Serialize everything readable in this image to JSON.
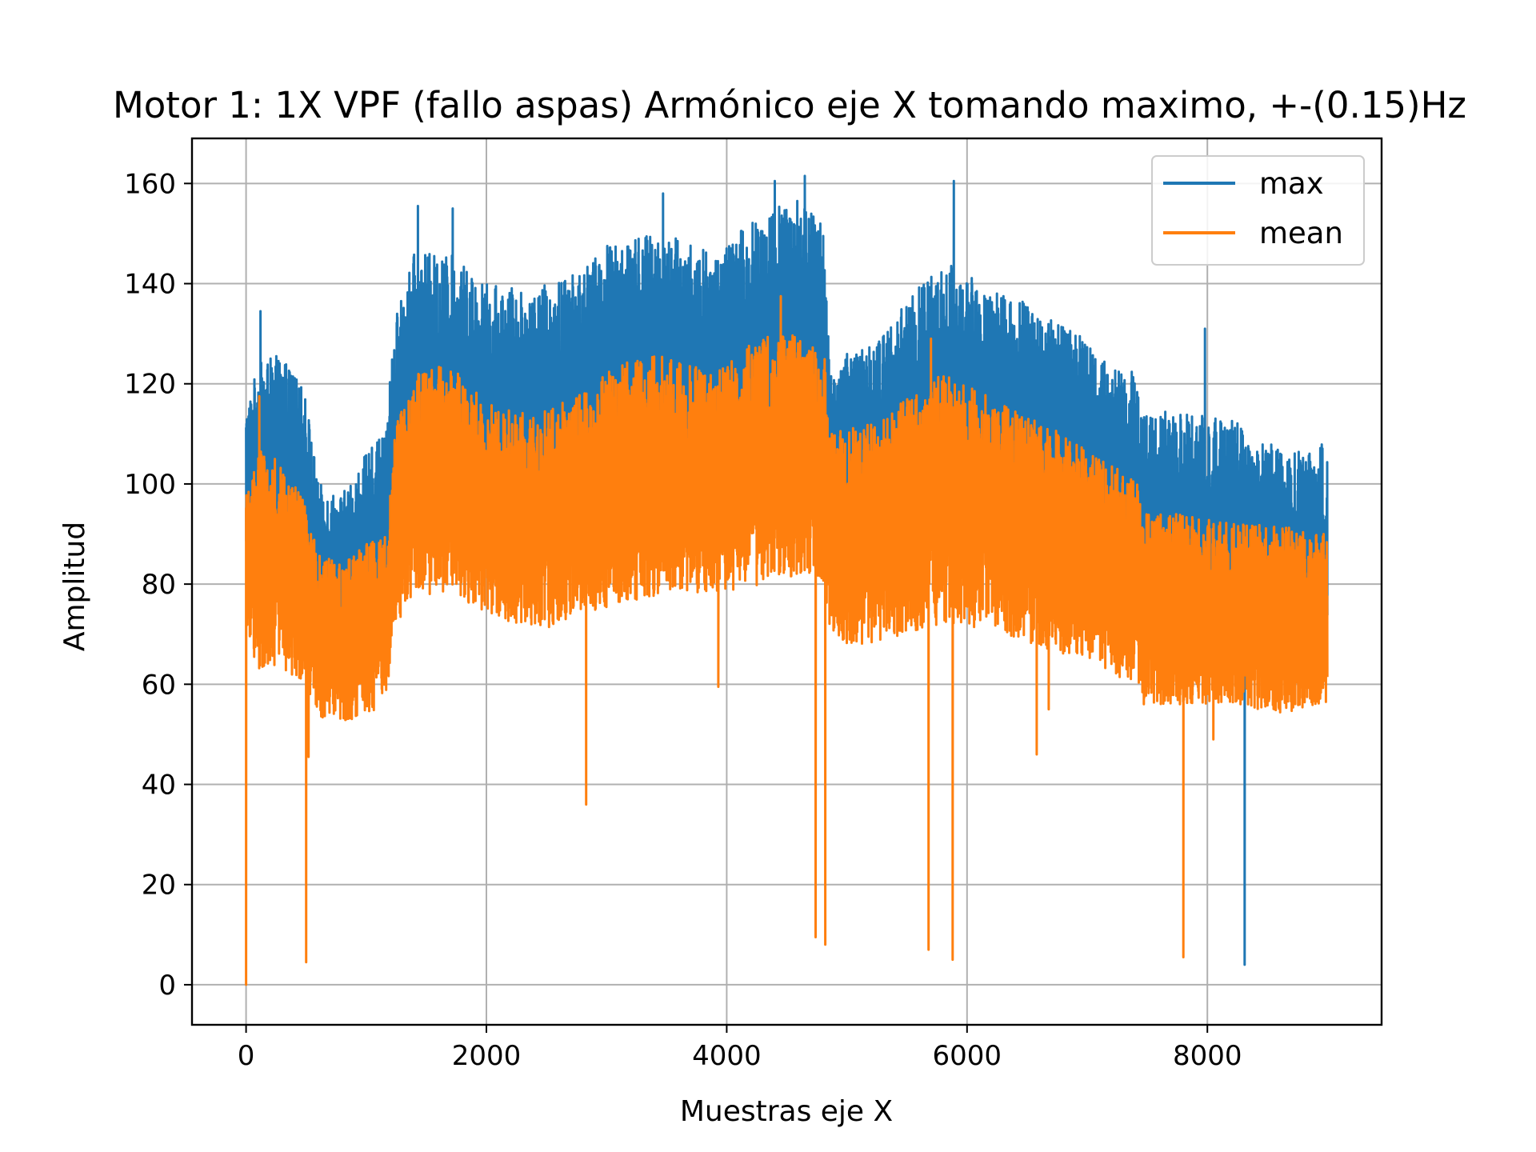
{
  "chart_data": {
    "type": "line",
    "title": "Motor 1: 1X VPF (fallo aspas) Armónico eje X tomando maximo, +-(0.15)Hz",
    "xlabel": "Muestras eje X",
    "ylabel": "Amplitud",
    "xlim": [
      -450,
      9450
    ],
    "ylim": [
      -8,
      169
    ],
    "xticks": [
      0,
      2000,
      4000,
      6000,
      8000
    ],
    "yticks": [
      0,
      20,
      40,
      60,
      80,
      100,
      120,
      140,
      160
    ],
    "grid": true,
    "legend_position": "upper right",
    "num_samples": 9000,
    "series": [
      {
        "name": "max",
        "color": "#1f77b4",
        "envelope": {
          "x": [
            0,
            100,
            300,
            500,
            600,
            800,
            1000,
            1150,
            1250,
            1400,
            1700,
            2000,
            2400,
            2800,
            3100,
            3500,
            3900,
            4300,
            4600,
            4820,
            4850,
            5200,
            5800,
            6300,
            6800,
            7200,
            7420,
            7450,
            7800,
            8200,
            8600,
            8990
          ],
          "upper": [
            115,
            124,
            126,
            118,
            100,
            98,
            106,
            110,
            134,
            146,
            146,
            140,
            139,
            143,
            150,
            150,
            146,
            155,
            157,
            152,
            125,
            128,
            145,
            138,
            133,
            124,
            122,
            115,
            114,
            113,
            107,
            108
          ],
          "lower": [
            86,
            82,
            80,
            74,
            65,
            62,
            64,
            66,
            82,
            92,
            92,
            88,
            86,
            90,
            92,
            94,
            94,
            96,
            98,
            96,
            84,
            84,
            88,
            86,
            80,
            77,
            74,
            68,
            67,
            66,
            63,
            64
          ]
        },
        "spikes_up": [
          {
            "x": 120,
            "y": 134.5
          },
          {
            "x": 1430,
            "y": 155.5
          },
          {
            "x": 1720,
            "y": 155
          },
          {
            "x": 3470,
            "y": 158
          },
          {
            "x": 4400,
            "y": 160.5
          },
          {
            "x": 4650,
            "y": 161.5
          },
          {
            "x": 5890,
            "y": 160.5
          },
          {
            "x": 7980,
            "y": 131
          }
        ],
        "spikes_down": [
          {
            "x": 8310,
            "y": 4
          }
        ]
      },
      {
        "name": "mean",
        "color": "#ff7f0e",
        "envelope": {
          "x": [
            0,
            100,
            300,
            500,
            600,
            800,
            1000,
            1150,
            1250,
            1400,
            1700,
            2000,
            2400,
            2800,
            3100,
            3500,
            3900,
            4300,
            4600,
            4820,
            4850,
            5200,
            5800,
            6300,
            6800,
            7200,
            7420,
            7450,
            7800,
            8200,
            8600,
            8990
          ],
          "upper": [
            98,
            108,
            104,
            96,
            86,
            84,
            88,
            90,
            112,
            122,
            124,
            116,
            114,
            118,
            124,
            126,
            122,
            130,
            130,
            126,
            110,
            112,
            122,
            116,
            110,
            104,
            100,
            94,
            94,
            92,
            92,
            90
          ],
          "lower": [
            70,
            63,
            63,
            60,
            53,
            52,
            54,
            56,
            72,
            78,
            78,
            74,
            70,
            74,
            76,
            78,
            78,
            80,
            82,
            80,
            68,
            68,
            72,
            70,
            66,
            62,
            60,
            56,
            56,
            56,
            54,
            56
          ]
        },
        "spikes_up": [
          {
            "x": 110,
            "y": 117.5
          },
          {
            "x": 4450,
            "y": 137.5
          },
          {
            "x": 5700,
            "y": 129
          }
        ],
        "spikes_down": [
          {
            "x": 0,
            "y": 0
          },
          {
            "x": 500,
            "y": 4.5
          },
          {
            "x": 520,
            "y": 45.5
          },
          {
            "x": 2830,
            "y": 36
          },
          {
            "x": 3930,
            "y": 59.5
          },
          {
            "x": 4740,
            "y": 9.5
          },
          {
            "x": 4820,
            "y": 8
          },
          {
            "x": 5680,
            "y": 7
          },
          {
            "x": 5880,
            "y": 5
          },
          {
            "x": 6580,
            "y": 46
          },
          {
            "x": 6680,
            "y": 55
          },
          {
            "x": 7800,
            "y": 5.5
          },
          {
            "x": 8050,
            "y": 49
          }
        ]
      }
    ]
  }
}
